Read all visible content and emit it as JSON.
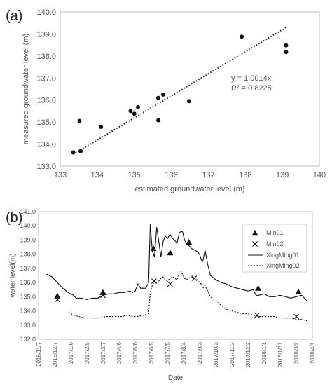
{
  "chart_data": [
    {
      "panel": "(a)",
      "type": "scatter",
      "xlabel": "estimated groundwater level (m)",
      "ylabel": "measured groundwater level (m)",
      "xlim": [
        133,
        140
      ],
      "ylim": [
        133,
        140
      ],
      "xticks": [
        "133",
        "134",
        "135",
        "136",
        "137",
        "138",
        "139",
        "140"
      ],
      "yticks": [
        "133.0",
        "134.0",
        "135.0",
        "136.0",
        "137.0",
        "138.0",
        "139.0",
        "140.0"
      ],
      "grid": false,
      "trendline": {
        "style": "dotted",
        "slope": 1.0014,
        "x_range": [
          133.35,
          139.1
        ]
      },
      "annotation_eq": "y = 1.0014x",
      "annotation_r2": "R² = 0.8225",
      "points": [
        {
          "x": 133.35,
          "y": 133.62
        },
        {
          "x": 133.52,
          "y": 135.05
        },
        {
          "x": 133.55,
          "y": 133.68
        },
        {
          "x": 134.1,
          "y": 134.78
        },
        {
          "x": 134.9,
          "y": 135.5
        },
        {
          "x": 135.0,
          "y": 135.38
        },
        {
          "x": 135.1,
          "y": 135.68
        },
        {
          "x": 135.65,
          "y": 135.08
        },
        {
          "x": 135.65,
          "y": 136.1
        },
        {
          "x": 135.78,
          "y": 136.25
        },
        {
          "x": 136.48,
          "y": 135.95
        },
        {
          "x": 137.9,
          "y": 138.88
        },
        {
          "x": 139.1,
          "y": 138.48
        },
        {
          "x": 139.1,
          "y": 138.18
        }
      ]
    },
    {
      "panel": "(b)",
      "type": "line",
      "xlabel": "Date",
      "ylabel": "water level(m)",
      "ylim": [
        132.0,
        141.0
      ],
      "yticks": [
        "132.0",
        "133.0",
        "134.0",
        "135.0",
        "136.0",
        "137.0",
        "138.0",
        "139.0",
        "140.0",
        "141.0"
      ],
      "xticks": [
        "2016/11/7",
        "2016/12/7",
        "2017/1/6",
        "2017/2/5",
        "2017/3/7",
        "2017/4/6",
        "2017/5/6",
        "2017/6/5",
        "2017/7/5",
        "2017/8/4",
        "2017/9/3",
        "2017/10/3",
        "2017/11/2",
        "2017/12/2",
        "2018/1/1",
        "2018/1/31",
        "2018/3/2",
        "2018/4/1"
      ],
      "x_unit": "days since 2016/11/7",
      "x_max": 510,
      "legend": [
        "Min01",
        "Min02",
        "XingMing01",
        "XingMing02"
      ],
      "legend_position": "right",
      "series": [
        {
          "name": "XingMing01",
          "style": "solid",
          "x": [
            15,
            25,
            35,
            45,
            55,
            65,
            70,
            80,
            90,
            100,
            110,
            120,
            130,
            140,
            150,
            160,
            170,
            175,
            180,
            185,
            190,
            200,
            205,
            208,
            212,
            216,
            220,
            224,
            228,
            232,
            236,
            240,
            245,
            250,
            258,
            262,
            265,
            268,
            272,
            275,
            280,
            285,
            290,
            295,
            300,
            303,
            306,
            310,
            315,
            320,
            330,
            340,
            350,
            360,
            370,
            380,
            390,
            400,
            405,
            410,
            420,
            430,
            440,
            450,
            460,
            470,
            480,
            490,
            500
          ],
          "values": [
            136.6,
            136.4,
            136.0,
            135.6,
            135.3,
            135.1,
            134.9,
            134.9,
            134.8,
            134.9,
            134.9,
            135.1,
            135.2,
            135.2,
            135.3,
            135.3,
            135.4,
            135.3,
            135.4,
            135.9,
            135.6,
            135.6,
            136.0,
            140.1,
            138.2,
            137.8,
            139.9,
            138.9,
            137.8,
            138.9,
            139.3,
            139.1,
            139.4,
            139.1,
            138.8,
            139.5,
            139.6,
            139.6,
            139.0,
            138.8,
            138.6,
            138.4,
            138.3,
            138.2,
            138.0,
            137.6,
            137.5,
            138.3,
            137.3,
            136.5,
            136.2,
            136.0,
            135.9,
            135.7,
            135.6,
            135.5,
            135.4,
            135.5,
            135.1,
            135.1,
            135.2,
            135.0,
            135.0,
            135.1,
            135.0,
            134.9,
            135.0,
            135.1,
            134.7
          ]
        },
        {
          "name": "XingMing02",
          "style": "dotted",
          "x": [
            56,
            65,
            75,
            85,
            95,
            105,
            115,
            125,
            135,
            145,
            155,
            165,
            175,
            185,
            195,
            205,
            208,
            212,
            216,
            220,
            224,
            228,
            232,
            236,
            240,
            245,
            250,
            258,
            262,
            265,
            268,
            272,
            275,
            280,
            285,
            290,
            295,
            300,
            303,
            306,
            310,
            315,
            320,
            330,
            340,
            350,
            360,
            370,
            380,
            390,
            400,
            410,
            420,
            430,
            440,
            450,
            460,
            470,
            480,
            490,
            500
          ],
          "values": [
            133.9,
            133.7,
            133.6,
            133.5,
            133.5,
            133.5,
            133.5,
            133.6,
            133.6,
            133.6,
            133.6,
            133.7,
            133.6,
            133.6,
            133.7,
            133.8,
            135.3,
            135.8,
            136.1,
            136.0,
            136.1,
            136.3,
            136.4,
            136.2,
            136.1,
            136.3,
            136.4,
            136.2,
            136.7,
            136.8,
            136.6,
            136.3,
            136.2,
            136.3,
            136.4,
            136.3,
            136.2,
            136.0,
            135.9,
            135.6,
            135.8,
            135.4,
            135.0,
            134.7,
            134.4,
            134.1,
            134.0,
            133.9,
            133.8,
            133.8,
            133.7,
            133.6,
            133.6,
            133.6,
            133.6,
            133.5,
            133.5,
            133.5,
            133.4,
            133.4,
            133.3
          ]
        },
        {
          "name": "Min01",
          "marker": "triangle",
          "x": [
            35,
            120,
            214,
            245,
            280,
            409,
            484
          ],
          "values": [
            135.05,
            135.3,
            138.4,
            138.1,
            138.85,
            135.6,
            135.35
          ]
        },
        {
          "name": "Min02",
          "marker": "x",
          "x": [
            35,
            120,
            215,
            245,
            290,
            407,
            480
          ],
          "values": [
            134.8,
            135.1,
            136.1,
            135.9,
            136.3,
            133.7,
            133.6
          ]
        }
      ]
    }
  ]
}
